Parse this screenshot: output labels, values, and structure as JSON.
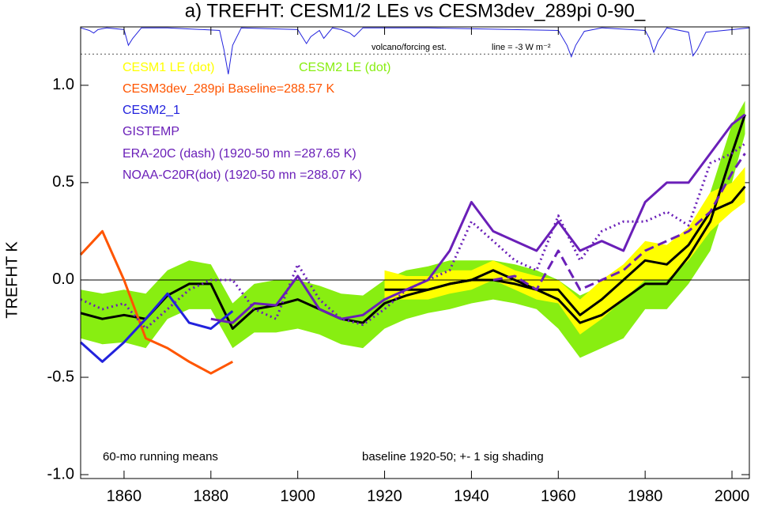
{
  "chart_data": {
    "type": "line",
    "title": "a) TREFHT: CESM1/2 LEs vs CESM3dev_289pi 0-90_",
    "y_label": "TREFHT K",
    "notes": [
      "60-mo running means",
      "baseline 1920-50; +- 1 sig shading"
    ],
    "xlim": [
      1850,
      2004
    ],
    "xticks": [
      1860,
      1880,
      1900,
      1920,
      1940,
      1960,
      1980,
      2000
    ],
    "ylim": [
      -1.02,
      1.3
    ],
    "yticks": [
      {
        "value": 1,
        "label": "1.0"
      },
      0.5,
      {
        "value": 0,
        "label": "0.0"
      },
      -0.5,
      {
        "value": -1,
        "label": "-1.0"
      }
    ],
    "zero_line": true,
    "x": [
      1850,
      1855,
      1860,
      1865,
      1870,
      1875,
      1880,
      1885,
      1890,
      1895,
      1900,
      1905,
      1910,
      1915,
      1920,
      1925,
      1930,
      1935,
      1940,
      1945,
      1950,
      1955,
      1960,
      1965,
      1970,
      1975,
      1980,
      1985,
      1990,
      1995,
      2000,
      2003
    ],
    "series": [
      {
        "name": "CESM2 LE (dot)",
        "color": "#88ee11",
        "line_color": "#000000",
        "dash": "solid",
        "values": [
          -0.17,
          -0.2,
          -0.18,
          -0.2,
          -0.08,
          -0.02,
          -0.02,
          -0.25,
          -0.15,
          -0.13,
          -0.1,
          -0.15,
          -0.2,
          -0.22,
          -0.12,
          -0.08,
          -0.05,
          -0.02,
          0.0,
          0.0,
          -0.02,
          -0.05,
          -0.1,
          -0.22,
          -0.18,
          -0.1,
          -0.02,
          -0.02,
          0.12,
          0.3,
          0.65,
          0.85
        ],
        "lower": [
          -0.3,
          -0.33,
          -0.32,
          -0.35,
          -0.2,
          -0.15,
          -0.15,
          -0.35,
          -0.27,
          -0.27,
          -0.25,
          -0.28,
          -0.33,
          -0.35,
          -0.25,
          -0.2,
          -0.17,
          -0.15,
          -0.12,
          -0.1,
          -0.12,
          -0.15,
          -0.25,
          -0.4,
          -0.35,
          -0.3,
          -0.15,
          -0.15,
          -0.02,
          0.15,
          0.5,
          0.75
        ],
        "upper": [
          -0.05,
          -0.07,
          -0.05,
          -0.07,
          0.05,
          0.1,
          0.08,
          -0.12,
          -0.02,
          0.0,
          0.0,
          -0.03,
          -0.07,
          -0.08,
          0.0,
          0.05,
          0.07,
          0.1,
          0.1,
          0.1,
          0.08,
          0.05,
          0.0,
          -0.08,
          -0.03,
          0.05,
          0.1,
          0.1,
          0.25,
          0.45,
          0.8,
          0.92
        ]
      },
      {
        "name": "CESM1 LE (dot)",
        "color": "#ffff00",
        "line_color": "#000000",
        "dash": "solid",
        "values": [
          null,
          null,
          null,
          null,
          null,
          null,
          null,
          null,
          null,
          null,
          null,
          null,
          null,
          null,
          -0.05,
          -0.05,
          -0.05,
          -0.02,
          0.0,
          0.05,
          0.0,
          -0.05,
          -0.05,
          -0.18,
          -0.1,
          0.0,
          0.1,
          0.08,
          0.18,
          0.35,
          0.4,
          0.48
        ],
        "lower": [
          null,
          null,
          null,
          null,
          null,
          null,
          null,
          null,
          null,
          null,
          null,
          null,
          null,
          null,
          -0.1,
          -0.1,
          -0.1,
          -0.07,
          -0.05,
          0.0,
          -0.05,
          -0.1,
          -0.12,
          -0.28,
          -0.2,
          -0.1,
          0.0,
          0.0,
          0.1,
          0.25,
          0.35,
          0.4
        ],
        "upper": [
          null,
          null,
          null,
          null,
          null,
          null,
          null,
          null,
          null,
          null,
          null,
          null,
          null,
          null,
          0.05,
          0.02,
          0.02,
          0.05,
          0.05,
          0.1,
          0.05,
          0.02,
          0.0,
          -0.1,
          0.0,
          0.08,
          0.2,
          0.18,
          0.27,
          0.45,
          0.5,
          0.58
        ]
      },
      {
        "name": "CESM3dev_289pi Baseline=288.57 K",
        "color": "#ff5500",
        "dash": "solid",
        "values": [
          0.13,
          0.25,
          0.0,
          -0.3,
          -0.35,
          -0.42,
          -0.48,
          -0.42,
          null,
          null,
          null,
          null,
          null,
          null,
          null,
          null,
          null,
          null,
          null,
          null,
          null,
          null,
          null,
          null,
          null,
          null,
          null,
          null,
          null,
          null,
          null,
          null
        ]
      },
      {
        "name": "CESM2_1",
        "color": "#2222dd",
        "dash": "solid",
        "values": [
          -0.32,
          -0.42,
          -0.32,
          -0.2,
          -0.07,
          -0.22,
          -0.25,
          -0.16,
          null,
          null,
          null,
          null,
          null,
          null,
          null,
          null,
          null,
          null,
          null,
          null,
          null,
          null,
          null,
          null,
          null,
          null,
          null,
          null,
          null,
          null,
          null,
          null
        ]
      },
      {
        "name": "GISTEMP",
        "color": "#6a1fb8",
        "dash": "solid",
        "values": [
          null,
          null,
          null,
          null,
          null,
          null,
          -0.2,
          -0.22,
          -0.12,
          -0.13,
          0.02,
          -0.15,
          -0.2,
          -0.18,
          -0.1,
          -0.05,
          0.0,
          0.15,
          0.4,
          0.25,
          0.2,
          0.15,
          0.3,
          0.15,
          0.2,
          0.15,
          0.4,
          0.5,
          0.5,
          0.65,
          0.8,
          0.85
        ]
      },
      {
        "name": "ERA-20C (dash) (1920-50 mn =287.65 K)",
        "color": "#6a1fb8",
        "dash": "dash",
        "values": [
          null,
          null,
          null,
          null,
          null,
          null,
          null,
          null,
          null,
          null,
          null,
          null,
          null,
          null,
          null,
          null,
          null,
          null,
          null,
          0.0,
          0.02,
          -0.05,
          0.15,
          -0.05,
          0.0,
          0.05,
          0.15,
          0.2,
          0.25,
          0.35,
          0.55,
          0.65
        ]
      },
      {
        "name": "NOAA-C20R(dot) (1920-50 mn =288.07 K)",
        "color": "#6a1fb8",
        "dash": "dot",
        "values": [
          -0.1,
          -0.15,
          -0.12,
          -0.25,
          -0.15,
          -0.05,
          0.0,
          0.0,
          -0.15,
          -0.2,
          0.08,
          -0.1,
          -0.2,
          -0.23,
          -0.15,
          -0.05,
          0.0,
          0.05,
          0.3,
          0.2,
          0.1,
          0.05,
          0.33,
          0.1,
          0.25,
          0.3,
          0.3,
          0.35,
          0.28,
          0.6,
          0.65,
          0.7
        ]
      }
    ],
    "forcing": {
      "label": "volcano/forcing est.",
      "note": "line = -3 W m⁻²",
      "color": "#2222dd",
      "ylim": [
        -5.5,
        0.2
      ],
      "ref_line": -3,
      "x": [
        1850,
        1852,
        1853,
        1854,
        1856,
        1860,
        1861,
        1862,
        1864,
        1870,
        1882,
        1883,
        1884,
        1885,
        1887,
        1900,
        1902,
        1903,
        1905,
        1906,
        1908,
        1910,
        1912,
        1913,
        1915,
        1930,
        1960,
        1962,
        1963,
        1964,
        1966,
        1970,
        1980,
        1981,
        1982,
        1983,
        1985,
        1990,
        1991,
        1992,
        1994,
        2004
      ],
      "values": [
        0,
        -0.3,
        -0.6,
        -0.2,
        0,
        -0.2,
        -2.0,
        -1.2,
        0,
        0,
        -0.3,
        -2.5,
        -5.3,
        -2.0,
        0,
        -0.2,
        -1.8,
        -1.0,
        -0.3,
        -1.2,
        0,
        -0.2,
        -0.6,
        -1.0,
        0,
        0,
        -0.3,
        -2.0,
        -3.3,
        -2.0,
        -0.4,
        0,
        -0.3,
        -1.2,
        -2.8,
        -1.5,
        0,
        -0.5,
        -3.2,
        -2.5,
        -0.5,
        0
      ]
    }
  }
}
